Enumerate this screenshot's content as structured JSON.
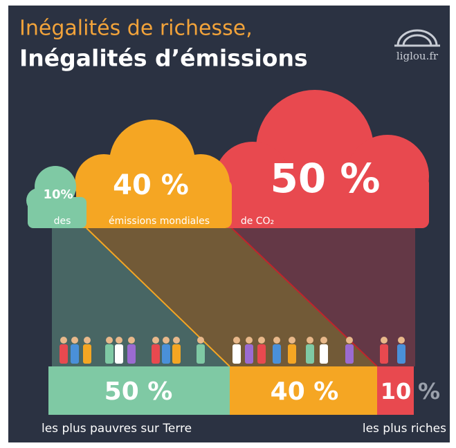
{
  "header": {
    "title_line1": "Inégalités de richesse,",
    "title_line2": "Inégalités d’émissions",
    "logo": "liglou.fr"
  },
  "clouds": [
    {
      "label": "10%"
    },
    {
      "label": "40 %"
    },
    {
      "label": "50 %"
    }
  ],
  "caption": {
    "word1": "des",
    "word2": "émissions mondiales",
    "word3": "de CO₂"
  },
  "bars": [
    {
      "label": "50 %"
    },
    {
      "label": "40 %"
    },
    {
      "label": "10",
      "suffix": "%"
    }
  ],
  "footer": {
    "left": "les plus pauvres sur Terre",
    "right": "les plus riches"
  }
}
